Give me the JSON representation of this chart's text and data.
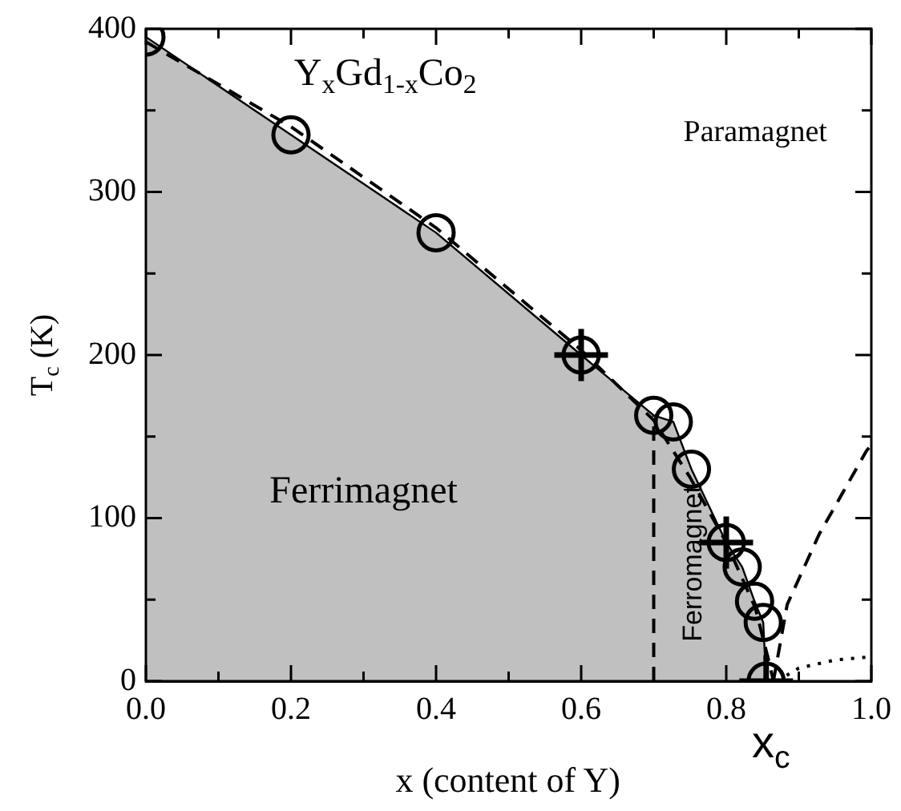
{
  "chart_data": {
    "type": "scatter",
    "xlabel": "x (content of Y)",
    "ylabel": "T$_{c}$ (K)",
    "xlim": [
      0,
      1
    ],
    "xticks": [
      {
        "value": 0,
        "label": "0.0"
      },
      {
        "value": 0.1,
        "label": null
      },
      {
        "value": 0.2,
        "label": "0.2"
      },
      {
        "value": 0.3,
        "label": null
      },
      {
        "value": 0.4,
        "label": "0.4"
      },
      {
        "value": 0.5,
        "label": null
      },
      {
        "value": 0.6,
        "label": "0.6"
      },
      {
        "value": 0.7,
        "label": null
      },
      {
        "value": 0.8,
        "label": "0.8"
      },
      {
        "value": 0.9,
        "label": null
      },
      {
        "value": 1,
        "label": "1.0"
      }
    ],
    "ylim": [
      0,
      400
    ],
    "yticks": [
      0,
      {
        "value": 50,
        "label": null
      },
      100,
      {
        "value": 150,
        "label": null
      },
      200,
      {
        "value": 250,
        "label": null
      },
      300,
      {
        "value": 350,
        "label": null
      },
      400
    ],
    "series": [
      {
        "type": "area",
        "color": "#c0c0c0",
        "x": [
          0,
          0.2,
          0.4,
          0.6,
          0.7,
          0.727,
          0.752,
          0.8,
          0.822,
          0.839,
          0.851,
          0.855
        ],
        "values": [
          395,
          335,
          275,
          200,
          163,
          159,
          130,
          85,
          70,
          49,
          36,
          0
        ],
        "marker": "none"
      },
      {
        "type": "line",
        "color": "#000000",
        "x": [
          0,
          0.2,
          0.4,
          0.6,
          0.7,
          0.75,
          0.8,
          0.84,
          0.86,
          0.865
        ],
        "values": [
          392,
          340,
          278,
          203,
          160,
          125,
          85,
          45,
          10,
          0
        ],
        "marker": "none",
        "line_style": "dashed"
      },
      {
        "type": "line",
        "color": "#000000",
        "x": [
          0.865,
          0.884,
          0.928,
          0.993,
          1
        ],
        "values": [
          0,
          47,
          90,
          141,
          145
        ],
        "marker": "none",
        "line_style": "dashed"
      },
      {
        "type": "line",
        "color": "#000000",
        "x": [
          0.87,
          0.9,
          0.95,
          1
        ],
        "values": [
          0,
          8,
          13,
          15
        ],
        "marker": "none",
        "line_style": "dotted"
      },
      {
        "type": "line",
        "color": "#000000",
        "x": [
          0.7,
          0.7
        ],
        "values": [
          0,
          163
        ],
        "marker": "none",
        "line_style": "dashed"
      },
      {
        "type": "scatter",
        "color": "#000000",
        "x": [
          0,
          0.2,
          0.4,
          0.6,
          0.7,
          0.727,
          0.752,
          0.8,
          0.822,
          0.839,
          0.851,
          0.855
        ],
        "values": [
          395,
          335,
          275,
          200,
          163,
          159,
          130,
          85,
          70,
          49,
          36,
          0
        ],
        "marker": "circle",
        "errors": [
          null,
          null,
          null,
          16,
          null,
          null,
          null,
          16,
          null,
          null,
          null,
          [
            0,
            16
          ]
        ],
        "xerrors": [
          null,
          null,
          null,
          0.037,
          null,
          null,
          null,
          0.037,
          null,
          null,
          null,
          0.037
        ]
      }
    ],
    "annotations": [
      "Y$_{x}$Gd$_{1-x}$Co$_{2}$",
      "Paramagnet",
      "Ferrimagnet",
      "Ferromagnet",
      {
        "text": "x$_{c}$",
        "x": 0.855,
        "y": 0
      }
    ]
  }
}
